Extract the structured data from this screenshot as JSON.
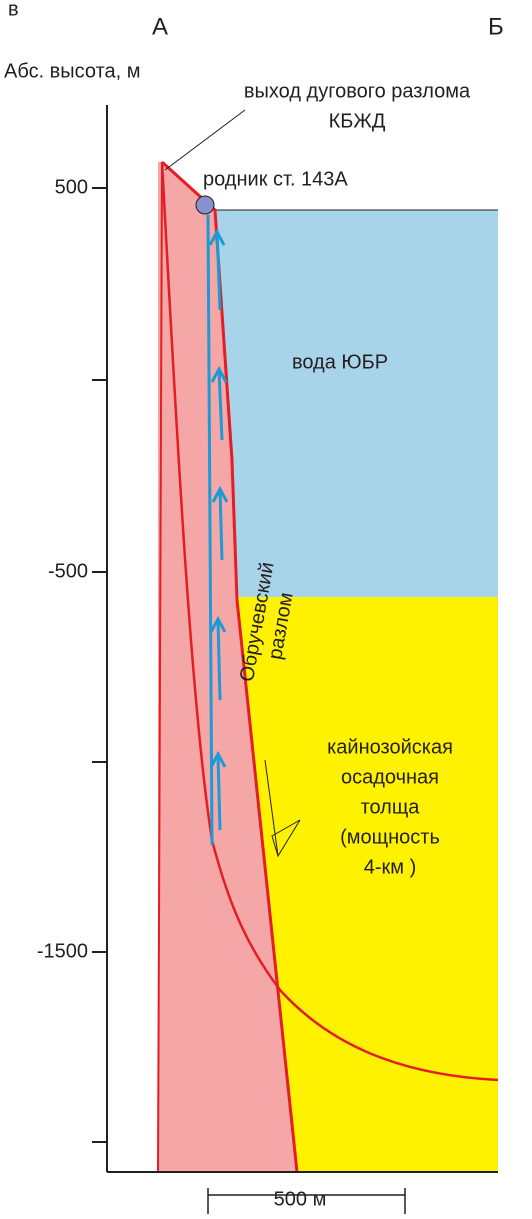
{
  "header": {
    "panel": "в",
    "left_end": "А",
    "right_end": "Б"
  },
  "axis": {
    "title": "Абс. высота, м",
    "tick_labels": [
      "500",
      "-500",
      "-1500"
    ]
  },
  "labels": {
    "fault_exit": [
      "выход дугового разлома",
      "КБЖД"
    ],
    "spring": "родник ст. 143А",
    "water": "вода ЮБР",
    "fault_name": [
      "Обручевский",
      "разлом"
    ],
    "sediments": [
      "кайнозойская",
      "осадочная",
      "толща",
      "(мощность",
      "4-км )"
    ]
  },
  "scale_bar": "500 м"
}
